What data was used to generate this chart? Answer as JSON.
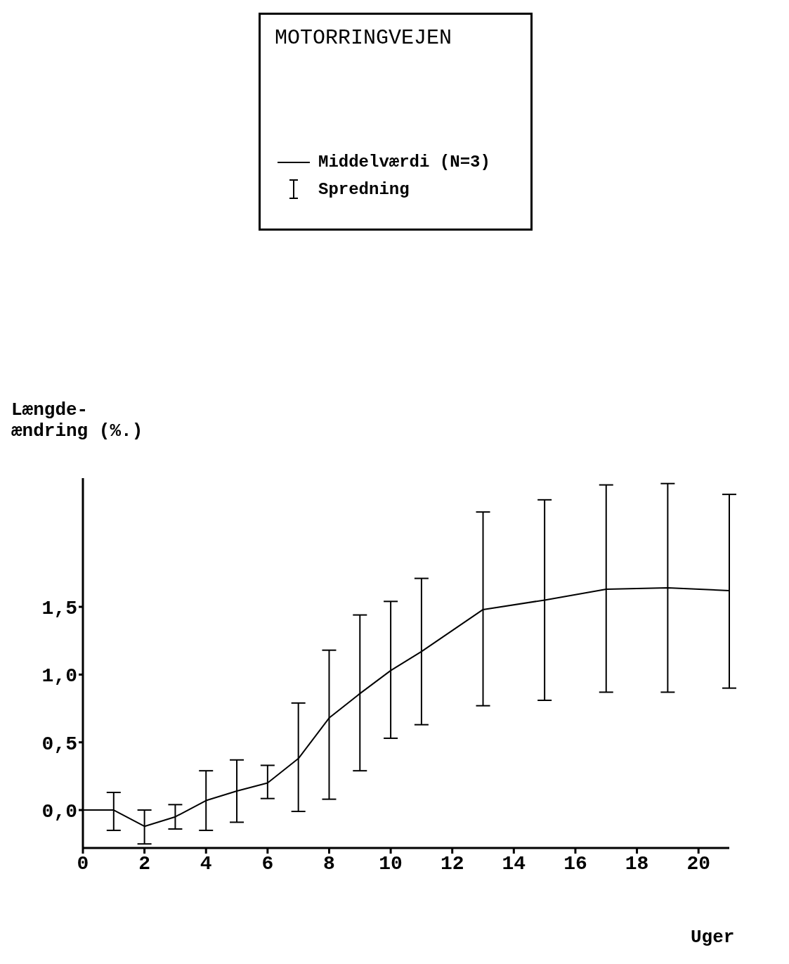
{
  "chart_data": {
    "type": "line",
    "title": "MOTORRINGVEJEN",
    "xlabel": "Uger",
    "ylabel": "Længde-\nændring (%.)",
    "x": [
      0,
      1,
      2,
      3,
      4,
      5,
      6,
      7,
      8,
      9,
      10,
      11,
      13,
      15,
      17,
      19,
      21
    ],
    "series": [
      {
        "name": "Middelværdi (N=3)",
        "color": "#000000",
        "values": [
          0,
          0,
          -0.12,
          -0.05,
          0.07,
          0.14,
          0.2,
          0.38,
          0.68,
          0.86,
          1.03,
          1.17,
          1.48,
          1.55,
          1.63,
          1.64,
          1.62
        ],
        "errors": [
          null,
          [
            -0.15,
            0.13
          ],
          [
            -0.25,
            0.0
          ],
          [
            -0.14,
            0.04
          ],
          [
            -0.15,
            0.29
          ],
          [
            -0.09,
            0.37
          ],
          [
            0.085,
            0.33
          ],
          [
            -0.01,
            0.79
          ],
          [
            0.08,
            1.18
          ],
          [
            0.29,
            1.44
          ],
          [
            0.53,
            1.54
          ],
          [
            0.63,
            1.71
          ],
          [
            0.77,
            2.2
          ],
          [
            0.81,
            2.29
          ],
          [
            0.87,
            2.4
          ],
          [
            0.87,
            2.41
          ],
          [
            0.9,
            2.33
          ]
        ]
      }
    ],
    "annotations": [
      "Spredning"
    ],
    "xlim": [
      0,
      21
    ],
    "xticks": [
      0,
      2,
      4,
      6,
      8,
      10,
      12,
      14,
      16,
      18,
      20
    ],
    "ylim": [
      -0.28,
      2.45
    ],
    "yticks": [
      {
        "value": 0,
        "label": "0,0"
      },
      {
        "value": 0.5,
        "label": "0,5"
      },
      {
        "value": 1,
        "label": "1,0"
      },
      {
        "value": 1.5,
        "label": "1,5"
      }
    ],
    "legend": "top",
    "grid": false,
    "marker": "none",
    "line_style": "solid"
  }
}
